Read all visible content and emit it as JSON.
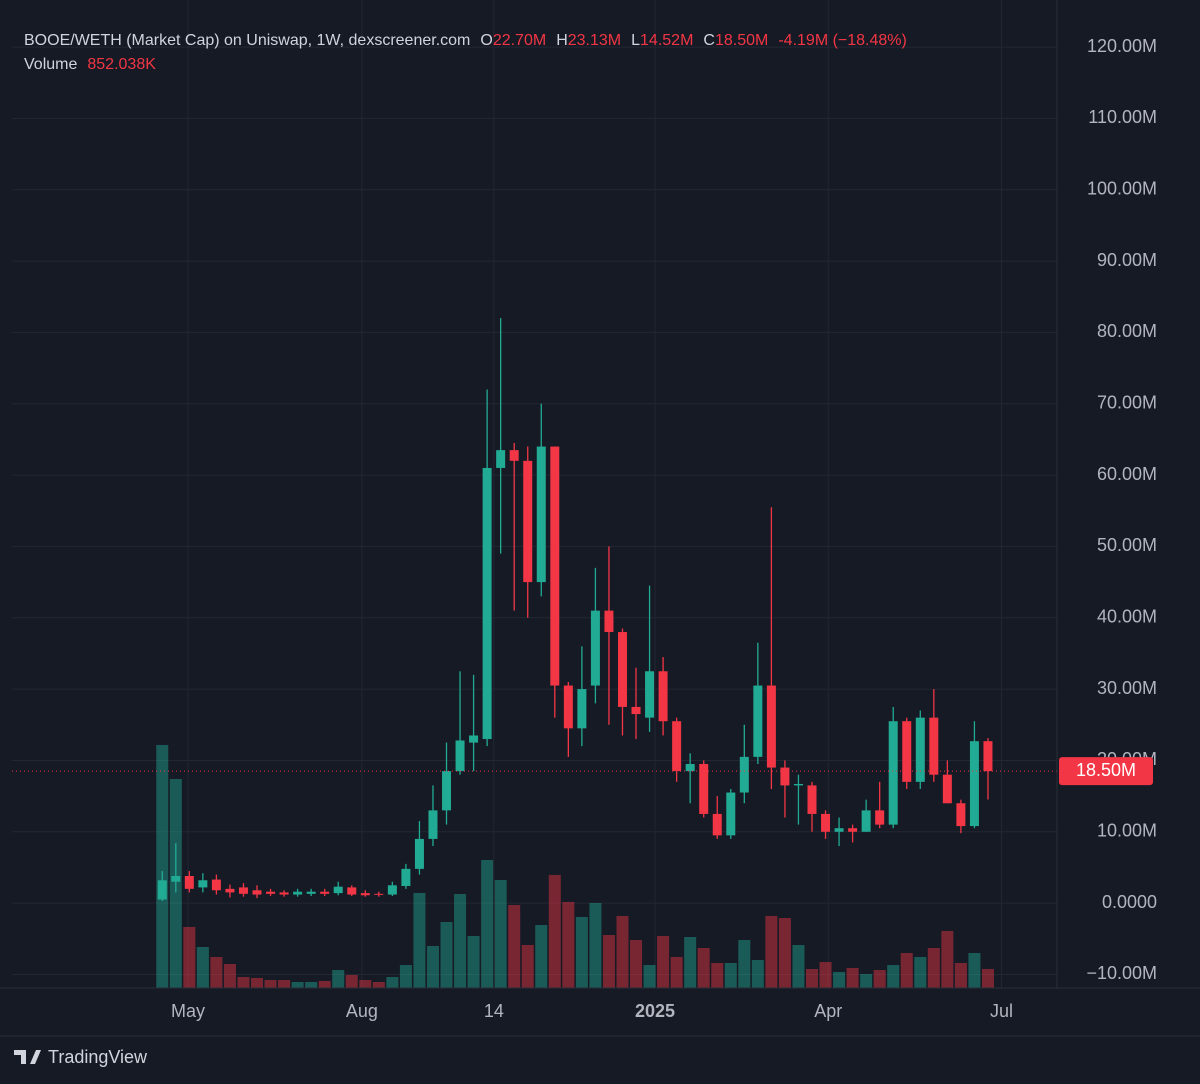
{
  "chart_data": {
    "type": "candlestick",
    "title": "BOOE/WETH (Market Cap) on Uniswap, 1W, dexscreener.com",
    "legend_ohlc": [
      {
        "key": "O",
        "value": "22.70M"
      },
      {
        "key": "H",
        "value": "23.13M"
      },
      {
        "key": "L",
        "value": "14.52M"
      },
      {
        "key": "C",
        "value": "18.50M"
      }
    ],
    "change": "-4.19M (−18.48%)",
    "volume_label": "Volume",
    "volume_value": "852.038K",
    "open": [
      0.5,
      3.0,
      3.8,
      2.2,
      3.3,
      2.0,
      2.2,
      1.8,
      1.6,
      1.5,
      1.2,
      1.3,
      1.6,
      1.4,
      2.2,
      1.4,
      1.3,
      1.2,
      2.4,
      4.8,
      9.0,
      13.0,
      18.5,
      22.5,
      23,
      61,
      63.5,
      62,
      45,
      64,
      30.5,
      24.5,
      30.5,
      41,
      38,
      27.5,
      26,
      32.5,
      25.5,
      18.5,
      19.5,
      12.5,
      9.5,
      15.5,
      20.5,
      30.5,
      19,
      16.5,
      16.5,
      12.5,
      10,
      10.5,
      10,
      13,
      11,
      25.5,
      17,
      26,
      18,
      14,
      10.8,
      22.7
    ],
    "high": [
      4.5,
      8.4,
      4.5,
      4.2,
      4.0,
      2.6,
      2.8,
      2.5,
      2.0,
      1.8,
      2.0,
      2.0,
      2.0,
      3.0,
      2.5,
      1.8,
      1.6,
      3.0,
      5.5,
      11.5,
      16.5,
      22.5,
      32.5,
      32,
      72,
      82,
      64.5,
      64,
      70,
      64,
      31,
      36,
      47,
      50,
      38.5,
      33,
      44.5,
      34.5,
      26,
      21,
      20,
      15,
      16,
      25,
      36.5,
      55.5,
      20,
      18,
      17,
      13,
      12,
      11,
      14.5,
      17,
      27.5,
      26,
      27,
      30,
      20,
      14.5,
      25.5,
      23.13
    ],
    "low": [
      0.3,
      1.5,
      1.5,
      1.5,
      1.2,
      0.8,
      0.9,
      0.7,
      1.0,
      0.9,
      0.9,
      1.0,
      1.0,
      1.1,
      1.0,
      0.9,
      0.9,
      1.0,
      2.0,
      4.0,
      8.0,
      11,
      18,
      18.5,
      22,
      49,
      41,
      40,
      43,
      26,
      20.5,
      22,
      28,
      25,
      23.5,
      23,
      24,
      23.5,
      17,
      14,
      12,
      9,
      9,
      14,
      19.5,
      16,
      12,
      11,
      10,
      9,
      8,
      8.5,
      10,
      10.5,
      10.5,
      16,
      16,
      17,
      14,
      9.8,
      10.5,
      14.52
    ],
    "close": [
      3.2,
      3.8,
      2.0,
      3.2,
      1.8,
      1.5,
      1.3,
      1.2,
      1.3,
      1.2,
      1.6,
      1.6,
      1.3,
      2.3,
      1.2,
      1.1,
      1.2,
      2.5,
      4.8,
      9.0,
      13.0,
      18.5,
      22.8,
      23.5,
      61,
      63.5,
      62,
      45,
      64,
      30.5,
      24.5,
      30,
      41,
      38,
      27.5,
      26.5,
      32.5,
      25.5,
      18.5,
      19.5,
      12.5,
      9.5,
      15.5,
      20.5,
      30.5,
      19,
      16.5,
      16.7,
      12.5,
      10,
      10.5,
      10,
      13,
      11,
      25.5,
      17,
      26,
      18,
      14,
      10.8,
      22.7,
      18.5
    ],
    "volume": [
      10886,
      9363,
      2733,
      1837,
      1389,
      1075,
      493,
      450,
      358,
      358,
      269,
      269,
      314,
      806,
      582,
      358,
      269,
      493,
      1030,
      4256,
      1882,
      2957,
      4211,
      2330,
      5734,
      4838,
      3718,
      1926,
      2822,
      5062,
      3853,
      3181,
      3808,
      2374,
      3226,
      2150,
      1030,
      2330,
      1389,
      2285,
      1792,
      1120,
      1120,
      2150,
      1254,
      3226,
      3136,
      1926,
      851,
      1165,
      717,
      896,
      627,
      806,
      1030,
      1568,
      1389,
      1792,
      2554,
      1120,
      1568,
      852.038
    ],
    "up_color": "#22ab94",
    "down_color": "#f23645",
    "xlim": [
      -11.1,
      66.1
    ],
    "xticks": [
      {
        "value": 1.9,
        "label": "May"
      },
      {
        "value": 14.75,
        "label": "Aug"
      },
      {
        "value": 24.5,
        "label": "14"
      },
      {
        "value": 36.4,
        "label": "2025"
      },
      {
        "value": 49.2,
        "label": "Apr"
      },
      {
        "value": 62.0,
        "label": "Jul"
      }
    ],
    "ylim": [
      -11.9,
      126.6
    ],
    "yticks": [
      {
        "value": 120,
        "label": "120.00M"
      },
      {
        "value": 110,
        "label": "110.00M"
      },
      {
        "value": 100,
        "label": "100.00M"
      },
      {
        "value": 90,
        "label": "90.00M"
      },
      {
        "value": 80,
        "label": "80.00M"
      },
      {
        "value": 70,
        "label": "70.00M"
      },
      {
        "value": 60,
        "label": "60.00M"
      },
      {
        "value": 50,
        "label": "50.00M"
      },
      {
        "value": 40,
        "label": "40.00M"
      },
      {
        "value": 30,
        "label": "30.00M"
      },
      {
        "value": 20,
        "label": "20.00M"
      },
      {
        "value": 10,
        "label": "10.00M"
      },
      {
        "value": 0,
        "label": "0.0000"
      },
      {
        "value": -10,
        "label": "−10.00M"
      }
    ],
    "price_line": {
      "value": 18.5,
      "label": "18.50M"
    },
    "grid": true,
    "brand": "TradingView"
  }
}
